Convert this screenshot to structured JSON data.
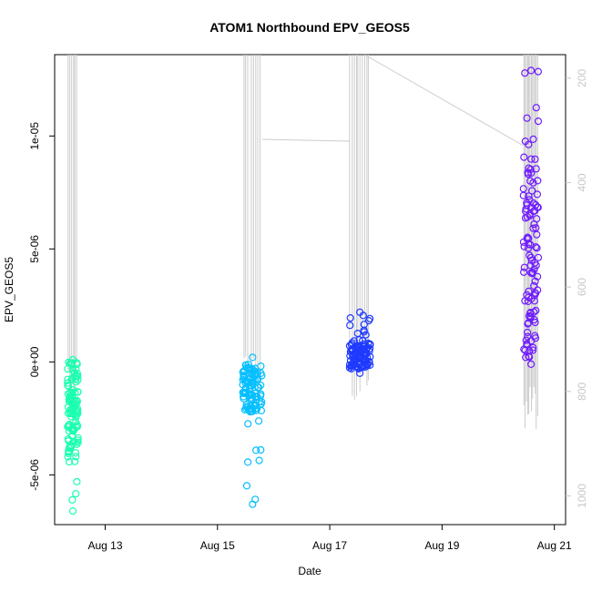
{
  "chart_data": {
    "type": "scatter",
    "title": "ATOM1 Northbound EPV_GEOS5",
    "xlabel": "Date",
    "ylabel": "EPV_GEOS5",
    "x_ticks": [
      "Aug 13",
      "Aug 15",
      "Aug 17",
      "Aug 19",
      "Aug 21"
    ],
    "x_tick_days": [
      13,
      15,
      17,
      19,
      21
    ],
    "xlim_days": [
      12.1,
      21.2
    ],
    "y_ticks": [
      "-5e-06",
      "0e+00",
      "5e-06",
      "1e-05"
    ],
    "y_tick_values": [
      -5e-06,
      0,
      5e-06,
      1e-05
    ],
    "ylim": [
      -7.2e-06,
      1.36e-05
    ],
    "right_axis_ticks": [
      "200",
      "400",
      "600",
      "800",
      "1000"
    ],
    "right_axis_values": [
      200,
      400,
      600,
      800,
      1000
    ],
    "right_axis_range": [
      1055,
      155
    ],
    "colors": {
      "flight_line": "#cccccc",
      "right_axis": "#c8c8c8"
    },
    "series": [
      {
        "day_range": [
          12.33,
          12.52
        ],
        "y_range": [
          -6.6e-06,
          1e-07
        ],
        "core_range": [
          -4.2e-06,
          0
        ],
        "color": "#1affb0"
      },
      {
        "day_range": [
          15.45,
          15.8
        ],
        "y_range": [
          -6.3e-06,
          2e-07
        ],
        "core_range": [
          -2.2e-06,
          -1e-07
        ],
        "color": "#05bfff"
      },
      {
        "day_range": [
          17.35,
          17.72
        ],
        "y_range": [
          -5e-07,
          2.2e-06
        ],
        "core_range": [
          -3e-07,
          8e-07
        ],
        "color": "#1f3aff"
      },
      {
        "day_range": [
          20.45,
          20.72
        ],
        "y_range": [
          -1e-07,
          1.29e-05
        ],
        "core_range": [
          2e-07,
          9e-06
        ],
        "color": "#6f1aff"
      }
    ]
  }
}
